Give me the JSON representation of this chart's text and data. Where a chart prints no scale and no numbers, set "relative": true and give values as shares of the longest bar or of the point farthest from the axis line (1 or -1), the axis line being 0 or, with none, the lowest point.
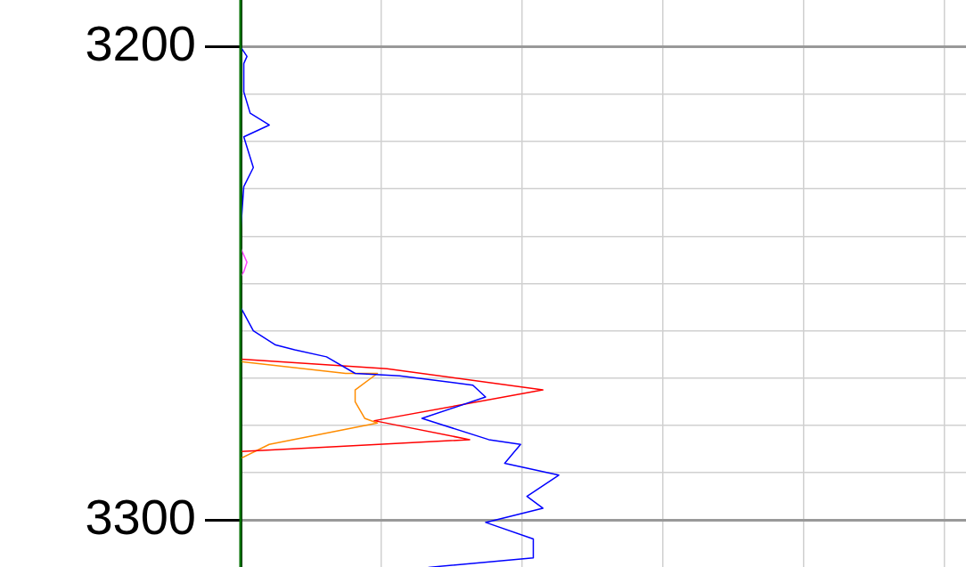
{
  "chart_data": {
    "type": "line",
    "relative": true,
    "orientation": "horizontal",
    "ylim": [
      3310,
      3190
    ],
    "yticks": [
      3200,
      {
        "value": 3210,
        "label": null
      },
      {
        "value": 3220,
        "label": null
      },
      {
        "value": 3230,
        "label": null
      },
      {
        "value": 3240,
        "label": null
      },
      {
        "value": 3250,
        "label": null
      },
      {
        "value": 3260,
        "label": null
      },
      {
        "value": 3270,
        "label": null
      },
      {
        "value": 3280,
        "label": null
      },
      {
        "value": 3290,
        "label": null
      },
      3300
    ],
    "grid": true,
    "marker": "none",
    "line_style": "solid",
    "tick_labels": "y",
    "ref_lines": [
      {
        "axis": "x",
        "value": 0,
        "color": "#007000"
      }
    ],
    "series": [
      {
        "color": "#0000ff",
        "values": [
          0,
          0.02,
          0.01,
          0.01,
          0.03,
          0.09,
          0.01,
          0.04,
          0.01,
          0,
          0,
          0.04,
          0.11,
          0.17,
          0.27,
          0.36,
          0.5,
          0.73,
          0.77,
          0.57,
          0.64,
          0.78,
          0.88,
          0.83,
          1,
          0.9,
          0.95,
          0.77,
          0.92,
          0.92,
          0.59
        ],
        "x": [
          3200,
          3202,
          3203.5,
          3209.5,
          3214,
          3216.5,
          3219,
          3225.5,
          3229.5,
          3239,
          3255,
          3260,
          3263,
          3264,
          3265.5,
          3269,
          3269.5,
          3271.5,
          3274,
          3278.5,
          3280,
          3283,
          3284,
          3288,
          3290.5,
          3295,
          3297.5,
          3300.5,
          3304,
          3308,
          3310
        ]
      },
      {
        "color": "#ff0000",
        "values": [
          0,
          0.46,
          0.95,
          0.42,
          0.72,
          0.3,
          0
        ],
        "x": [
          3266,
          3268,
          3272.5,
          3279,
          3283,
          3284.5,
          3285.5
        ]
      },
      {
        "color": "#ff8c00",
        "values": [
          0,
          0.33,
          0.43,
          0.36,
          0.36,
          0.39,
          0.43,
          0.09,
          0
        ],
        "x": [
          3266.5,
          3269,
          3269,
          3272.5,
          3275,
          3278.5,
          3279.5,
          3284,
          3287
        ]
      },
      {
        "color": "#ff44ff",
        "values": [
          0,
          0.02,
          0.01,
          0
        ],
        "x": [
          3242.5,
          3245.5,
          3247.5,
          3248.5
        ]
      }
    ]
  }
}
